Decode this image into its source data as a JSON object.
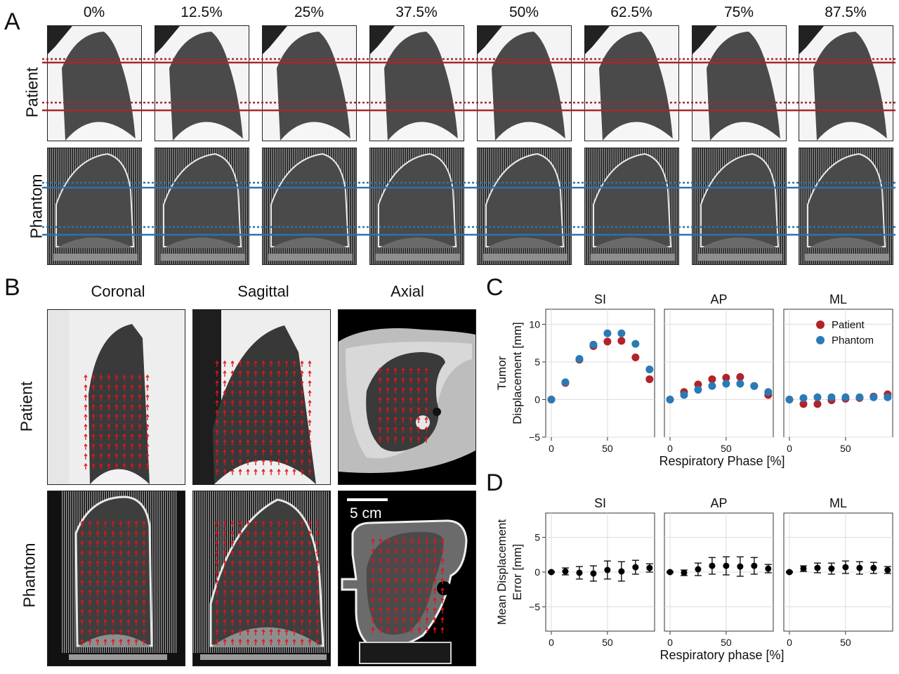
{
  "panels": {
    "A": "A",
    "B": "B",
    "C": "C",
    "D": "D"
  },
  "panel_a": {
    "phases": [
      "0%",
      "12.5%",
      "25%",
      "37.5%",
      "50%",
      "62.5%",
      "75%",
      "87.5%"
    ],
    "row_labels": [
      "Patient",
      "Phantom"
    ],
    "line_colors": {
      "patient": "#a8282c",
      "phantom": "#2a72b0"
    }
  },
  "panel_b": {
    "col_labels": [
      "Coronal",
      "Sagittal",
      "Axial"
    ],
    "row_labels": [
      "Patient",
      "Phantom"
    ],
    "scale_bar": "5 cm",
    "arrow_color": "#e0141c"
  },
  "chart_data": [
    {
      "id": "C",
      "type": "scatter",
      "subplots": [
        "SI",
        "AP",
        "ML"
      ],
      "ylabel": "Tumor\nDisplacement [mm]",
      "xlabel": "Respiratory Phase [%]",
      "ylim": [
        -5,
        12
      ],
      "xlim": [
        -5,
        92
      ],
      "yticks": [
        -5,
        0,
        5,
        10
      ],
      "xticks": [
        0,
        50
      ],
      "grid": true,
      "legend": "top-right of ML subplot",
      "x": [
        0,
        12.5,
        25,
        37.5,
        50,
        62.5,
        75,
        87.5
      ],
      "series": [
        {
          "name": "Patient",
          "color": "#b22228",
          "values": {
            "SI": [
              0,
              2.2,
              5.3,
              7.1,
              7.7,
              7.8,
              5.6,
              2.7
            ],
            "AP": [
              0,
              1.0,
              2.0,
              2.7,
              2.9,
              3.0,
              1.8,
              0.6
            ],
            "ML": [
              0,
              -0.6,
              -0.6,
              -0.1,
              0.1,
              0.2,
              0.4,
              0.7
            ]
          }
        },
        {
          "name": "Phantom",
          "color": "#2a7ab6",
          "values": {
            "SI": [
              0,
              2.3,
              5.4,
              7.3,
              8.8,
              8.8,
              7.4,
              4.0
            ],
            "AP": [
              0,
              0.6,
              1.3,
              1.8,
              2.1,
              2.1,
              1.8,
              1.0
            ],
            "ML": [
              0,
              0.2,
              0.3,
              0.3,
              0.3,
              0.3,
              0.3,
              0.3
            ]
          }
        }
      ]
    },
    {
      "id": "D",
      "type": "scatter",
      "subplots": [
        "SI",
        "AP",
        "ML"
      ],
      "ylabel": "Mean Displacement\nError [mm]",
      "xlabel": "Respiratory phase [%]",
      "ylim": [
        -8.5,
        8.5
      ],
      "xlim": [
        -5,
        92
      ],
      "yticks": [
        -5,
        0,
        5
      ],
      "xticks": [
        0,
        50
      ],
      "grid": true,
      "x": [
        0,
        12.5,
        25,
        37.5,
        50,
        62.5,
        75,
        87.5
      ],
      "color": "#000000",
      "values": {
        "SI": [
          0,
          0.1,
          -0.1,
          -0.2,
          0.3,
          0.1,
          0.7,
          0.6
        ],
        "AP": [
          0,
          -0.1,
          0.4,
          0.9,
          0.9,
          0.8,
          0.9,
          0.5
        ],
        "ML": [
          0,
          0.5,
          0.6,
          0.5,
          0.7,
          0.6,
          0.6,
          0.3
        ]
      },
      "errors": {
        "SI": [
          0.1,
          0.5,
          0.9,
          1.1,
          1.3,
          1.4,
          1.0,
          0.6
        ],
        "AP": [
          0.1,
          0.4,
          0.9,
          1.2,
          1.3,
          1.4,
          1.2,
          0.6
        ],
        "ML": [
          0.1,
          0.4,
          0.7,
          0.8,
          0.9,
          0.9,
          0.8,
          0.5
        ]
      }
    }
  ]
}
